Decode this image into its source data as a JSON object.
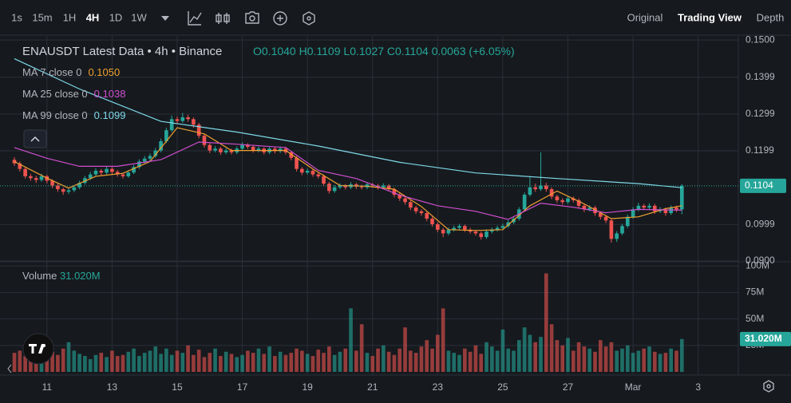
{
  "toolbar": {
    "intervals": [
      "1s",
      "15m",
      "1H",
      "4H",
      "1D",
      "1W"
    ],
    "active": "4H",
    "views": [
      "Original",
      "Trading View",
      "Depth"
    ],
    "active_view": "Trading View"
  },
  "chart_data": {
    "type": "candlestick",
    "title": "ENAUSDT Latest Data • 4h • Binance",
    "header_ohlc": [
      "O0.1040",
      "H0.1109",
      "L0.1027",
      "C0.1104",
      "0.0063 (+6.05%)"
    ],
    "up_color": "#26a69a",
    "down_color": "#ef5350",
    "xlim": [
      -2.65,
      133.4
    ],
    "xticks": [
      {
        "value": 6,
        "label": "11"
      },
      {
        "value": 18,
        "label": "13"
      },
      {
        "value": 30,
        "label": "15"
      },
      {
        "value": 42,
        "label": "17"
      },
      {
        "value": 54,
        "label": "19"
      },
      {
        "value": 66,
        "label": "21"
      },
      {
        "value": 78,
        "label": "23"
      },
      {
        "value": 90,
        "label": "25"
      },
      {
        "value": 102,
        "label": "27"
      },
      {
        "value": 114,
        "label": "Mar"
      },
      {
        "value": 126,
        "label": "3"
      }
    ],
    "ylim": [
      0.0898,
      0.1511
    ],
    "yticks": [
      {
        "value": 0.15,
        "label": "0.1500"
      },
      {
        "value": 0.1399,
        "label": "0.1399"
      },
      {
        "value": 0.1299,
        "label": "0.1299"
      },
      {
        "value": 0.1199,
        "label": "0.1199"
      },
      {
        "value": 0.0999,
        "label": "0.0999"
      },
      {
        "value": 0.09,
        "label": "0.0900"
      }
    ],
    "grid": true,
    "candles": {
      "open": [
        0.1175,
        0.1165,
        0.115,
        0.113,
        0.1125,
        0.112,
        0.113,
        0.1118,
        0.1105,
        0.1095,
        0.1088,
        0.1092,
        0.11,
        0.1112,
        0.1125,
        0.1135,
        0.1145,
        0.114,
        0.115,
        0.1142,
        0.1135,
        0.113,
        0.114,
        0.1155,
        0.117,
        0.1178,
        0.1185,
        0.12,
        0.1225,
        0.1255,
        0.1285,
        0.128,
        0.129,
        0.1285,
        0.127,
        0.124,
        0.1215,
        0.12,
        0.1205,
        0.1195,
        0.12,
        0.1195,
        0.1205,
        0.1215,
        0.121,
        0.12,
        0.1205,
        0.1195,
        0.1205,
        0.1198,
        0.1205,
        0.1195,
        0.118,
        0.115,
        0.114,
        0.1145,
        0.1135,
        0.113,
        0.111,
        0.109,
        0.11,
        0.1105,
        0.11,
        0.1108,
        0.1102,
        0.11,
        0.1108,
        0.1105,
        0.11,
        0.1105,
        0.1095,
        0.108,
        0.107,
        0.106,
        0.1045,
        0.1035,
        0.103,
        0.1015,
        0.1,
        0.0985,
        0.0975,
        0.0985,
        0.099,
        0.0995,
        0.0985,
        0.098,
        0.0975,
        0.0965,
        0.098,
        0.0985,
        0.099,
        0.0995,
        0.1005,
        0.1015,
        0.104,
        0.108,
        0.11,
        0.1095,
        0.1105,
        0.1095,
        0.1075,
        0.1065,
        0.106,
        0.107,
        0.1065,
        0.105,
        0.104,
        0.1045,
        0.103,
        0.102,
        0.101,
        0.096,
        0.0975,
        0.0995,
        0.102,
        0.104,
        0.105,
        0.1045,
        0.105,
        0.1035,
        0.104,
        0.103,
        0.1045,
        0.104
      ],
      "high": [
        0.1182,
        0.117,
        0.1155,
        0.1136,
        0.1131,
        0.1137,
        0.1134,
        0.1122,
        0.111,
        0.1099,
        0.1098,
        0.1106,
        0.1118,
        0.1131,
        0.1142,
        0.1152,
        0.115,
        0.1157,
        0.1155,
        0.1147,
        0.114,
        0.1146,
        0.1161,
        0.1176,
        0.1185,
        0.1192,
        0.1207,
        0.1232,
        0.1262,
        0.1295,
        0.1292,
        0.1302,
        0.1297,
        0.129,
        0.1275,
        0.1246,
        0.122,
        0.1212,
        0.121,
        0.1206,
        0.1205,
        0.1211,
        0.1222,
        0.122,
        0.1214,
        0.1211,
        0.1209,
        0.1211,
        0.121,
        0.1211,
        0.121,
        0.1199,
        0.1185,
        0.1155,
        0.1151,
        0.115,
        0.114,
        0.1135,
        0.1115,
        0.1106,
        0.1111,
        0.1109,
        0.1114,
        0.1112,
        0.1107,
        0.1114,
        0.1112,
        0.1109,
        0.1111,
        0.1109,
        0.1099,
        0.1085,
        0.1075,
        0.1065,
        0.105,
        0.104,
        0.1035,
        0.102,
        0.1005,
        0.099,
        0.0991,
        0.0996,
        0.1001,
        0.0999,
        0.099,
        0.0985,
        0.098,
        0.0986,
        0.0991,
        0.0996,
        0.1001,
        0.1011,
        0.1021,
        0.1046,
        0.1086,
        0.113,
        0.111,
        0.1195,
        0.1112,
        0.11,
        0.108,
        0.107,
        0.1076,
        0.1075,
        0.107,
        0.1055,
        0.1051,
        0.105,
        0.1035,
        0.1025,
        0.1015,
        0.0981,
        0.1001,
        0.1026,
        0.1046,
        0.1058,
        0.1055,
        0.1057,
        0.1055,
        0.1046,
        0.1045,
        0.1051,
        0.105,
        0.1109
      ],
      "low": [
        0.1158,
        0.1143,
        0.1124,
        0.1118,
        0.1112,
        0.1115,
        0.1111,
        0.1098,
        0.1088,
        0.108,
        0.1082,
        0.1087,
        0.1095,
        0.1107,
        0.112,
        0.113,
        0.1133,
        0.1135,
        0.1136,
        0.1129,
        0.1124,
        0.1126,
        0.1136,
        0.115,
        0.1165,
        0.1172,
        0.118,
        0.1195,
        0.122,
        0.125,
        0.1272,
        0.1275,
        0.1278,
        0.1262,
        0.1233,
        0.1208,
        0.1193,
        0.1195,
        0.1188,
        0.119,
        0.1189,
        0.119,
        0.12,
        0.1204,
        0.1194,
        0.1195,
        0.1189,
        0.119,
        0.1192,
        0.1193,
        0.1189,
        0.1173,
        0.1143,
        0.1133,
        0.1135,
        0.1129,
        0.1124,
        0.1103,
        0.1083,
        0.1085,
        0.1095,
        0.1094,
        0.1095,
        0.1096,
        0.1094,
        0.1095,
        0.1099,
        0.1094,
        0.1095,
        0.1089,
        0.1073,
        0.1063,
        0.1053,
        0.1038,
        0.1028,
        0.1023,
        0.1008,
        0.0993,
        0.0978,
        0.0965,
        0.097,
        0.098,
        0.0985,
        0.0979,
        0.0974,
        0.0969,
        0.0958,
        0.096,
        0.0975,
        0.098,
        0.0985,
        0.099,
        0.1,
        0.101,
        0.1035,
        0.1075,
        0.1088,
        0.109,
        0.1088,
        0.1068,
        0.1058,
        0.1053,
        0.1055,
        0.1059,
        0.1043,
        0.1033,
        0.1035,
        0.1023,
        0.1013,
        0.1003,
        0.095,
        0.0952,
        0.097,
        0.099,
        0.1015,
        0.1035,
        0.1038,
        0.104,
        0.1028,
        0.103,
        0.1023,
        0.1025,
        0.1033,
        0.1027
      ],
      "close": [
        0.1165,
        0.115,
        0.113,
        0.1125,
        0.112,
        0.113,
        0.1118,
        0.1105,
        0.1095,
        0.1088,
        0.1092,
        0.11,
        0.1112,
        0.1125,
        0.1135,
        0.1145,
        0.114,
        0.115,
        0.1142,
        0.1135,
        0.113,
        0.114,
        0.1155,
        0.117,
        0.1178,
        0.1185,
        0.12,
        0.1225,
        0.1255,
        0.1285,
        0.128,
        0.129,
        0.1285,
        0.127,
        0.124,
        0.1215,
        0.12,
        0.1205,
        0.1195,
        0.12,
        0.1195,
        0.1205,
        0.1215,
        0.121,
        0.12,
        0.1205,
        0.1195,
        0.1205,
        0.1198,
        0.1205,
        0.1195,
        0.118,
        0.115,
        0.114,
        0.1145,
        0.1135,
        0.113,
        0.111,
        0.109,
        0.11,
        0.1105,
        0.11,
        0.1108,
        0.1102,
        0.11,
        0.1108,
        0.1105,
        0.11,
        0.1105,
        0.1095,
        0.108,
        0.107,
        0.106,
        0.1045,
        0.1035,
        0.103,
        0.1015,
        0.1,
        0.0985,
        0.0975,
        0.0985,
        0.099,
        0.0995,
        0.0985,
        0.098,
        0.0975,
        0.0965,
        0.098,
        0.0985,
        0.099,
        0.0995,
        0.1005,
        0.1015,
        0.104,
        0.108,
        0.11,
        0.1095,
        0.1105,
        0.1095,
        0.1075,
        0.1065,
        0.106,
        0.107,
        0.1065,
        0.105,
        0.104,
        0.1045,
        0.103,
        0.102,
        0.101,
        0.096,
        0.0975,
        0.0995,
        0.102,
        0.104,
        0.105,
        0.1045,
        0.105,
        0.1035,
        0.104,
        0.103,
        0.1045,
        0.104,
        0.1104
      ]
    },
    "ma": [
      {
        "name": "MA 7 close 0",
        "last_label": "0.1050",
        "color": "#f0a030",
        "x": [
          0,
          6,
          10,
          15,
          20,
          25,
          30,
          35,
          40,
          50,
          55,
          60,
          65,
          70,
          75,
          80,
          85,
          90,
          95,
          100,
          105,
          110,
          115,
          120,
          123
        ],
        "values": [
          0.117,
          0.1125,
          0.1098,
          0.113,
          0.1138,
          0.117,
          0.1262,
          0.1245,
          0.12,
          0.12,
          0.115,
          0.1105,
          0.1103,
          0.1095,
          0.1048,
          0.0985,
          0.0983,
          0.0985,
          0.105,
          0.109,
          0.1055,
          0.1015,
          0.102,
          0.1042,
          0.105
        ]
      },
      {
        "name": "MA 25 close 0",
        "last_label": "0.1038",
        "color": "#d04ed0",
        "x": [
          0,
          6,
          12,
          19,
          27,
          34,
          41,
          50,
          56,
          63,
          71,
          78,
          85,
          91,
          97,
          103,
          109,
          115,
          123
        ],
        "values": [
          0.1208,
          0.1179,
          0.1157,
          0.1157,
          0.1175,
          0.1223,
          0.1217,
          0.1208,
          0.1146,
          0.1124,
          0.1079,
          0.105,
          0.1035,
          0.1013,
          0.1057,
          0.1046,
          0.1031,
          0.104,
          0.1038
        ]
      },
      {
        "name": "MA 99 close 0",
        "last_label": "0.1099",
        "color": "#7fd8e8",
        "x": [
          0,
          12,
          27,
          41,
          56,
          71,
          85,
          100,
          115,
          123
        ],
        "values": [
          0.1449,
          0.1367,
          0.1279,
          0.125,
          0.1212,
          0.1168,
          0.1139,
          0.1124,
          0.111,
          0.1099
        ]
      }
    ],
    "volume": {
      "name": "Volume",
      "last_label": "31.020M",
      "ylim": [
        0,
        104
      ],
      "yticks": [
        {
          "value": 100,
          "label": "100M"
        },
        {
          "value": 75,
          "label": "75M"
        },
        {
          "value": 50,
          "label": "50M"
        },
        {
          "value": 25,
          "label": "25M"
        }
      ],
      "values": [
        18,
        20,
        15,
        22,
        17,
        14,
        25,
        19,
        16,
        22,
        28,
        20,
        17,
        15,
        12,
        16,
        18,
        14,
        20,
        15,
        16,
        19,
        22,
        15,
        18,
        20,
        24,
        17,
        22,
        16,
        20,
        18,
        25,
        16,
        21,
        14,
        18,
        22,
        15,
        19,
        17,
        14,
        16,
        20,
        18,
        22,
        17,
        24,
        15,
        19,
        16,
        18,
        22,
        20,
        17,
        15,
        21,
        18,
        24,
        16,
        19,
        22,
        60,
        20,
        45,
        18,
        15,
        22,
        25,
        19,
        16,
        22,
        42,
        20,
        18,
        24,
        30,
        22,
        35,
        60,
        20,
        18,
        16,
        22,
        19,
        25,
        17,
        28,
        24,
        20,
        40,
        22,
        20,
        30,
        42,
        35,
        28,
        33,
        93,
        45,
        30,
        25,
        32,
        20,
        28,
        24,
        22,
        19,
        30,
        24,
        28,
        20,
        22,
        25,
        18,
        20,
        22,
        24,
        19,
        17,
        18,
        22,
        20,
        31.02
      ]
    }
  }
}
